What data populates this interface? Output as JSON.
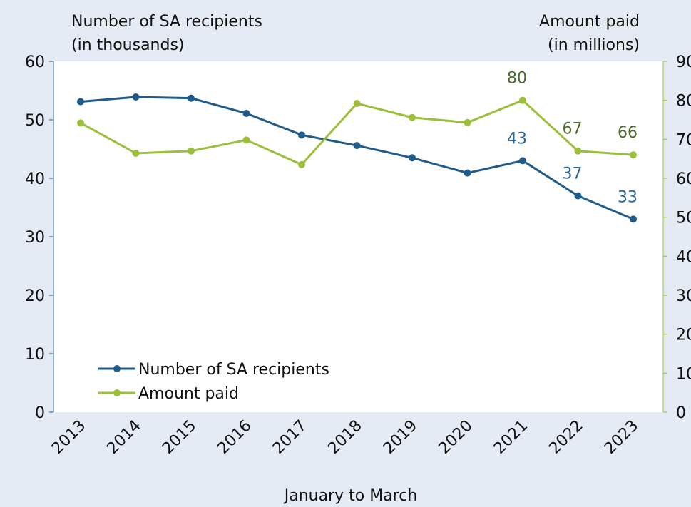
{
  "chart_data": {
    "type": "line",
    "ylabel": [
      "Number of SA recipients",
      "(in thousands)"
    ],
    "y2label": [
      "Amount paid",
      "(in millions)"
    ],
    "xlabel": "January to March",
    "categories": [
      "2013",
      "2014",
      "2015",
      "2016",
      "2017",
      "2018",
      "2019",
      "2020",
      "2021",
      "2022",
      "2023"
    ],
    "series": [
      {
        "name": "Number of SA recipients",
        "color": "#1f5c8b",
        "label_color": "#2a6496",
        "axis": "y",
        "values": [
          53.1,
          53.9,
          53.7,
          51.1,
          47.4,
          45.6,
          43.5,
          40.9,
          43,
          37,
          33
        ],
        "value_labels": [
          null,
          null,
          null,
          null,
          null,
          null,
          null,
          null,
          "43",
          "37",
          "33"
        ]
      },
      {
        "name": "Amount paid",
        "color": "#9bbf3b",
        "label_color": "#4a6b2a",
        "axis": "y2",
        "values": [
          74.2,
          66.4,
          67,
          69.8,
          63.5,
          79.2,
          75.6,
          74.3,
          80,
          67,
          66
        ],
        "value_labels": [
          null,
          null,
          null,
          null,
          null,
          null,
          null,
          null,
          "80",
          "67",
          "66"
        ]
      }
    ],
    "ylim": [
      0,
      60
    ],
    "yticks": [
      0,
      10,
      20,
      30,
      40,
      50,
      60
    ],
    "y2lim": [
      0,
      90
    ],
    "y2ticks": [
      0,
      10,
      20,
      30,
      40,
      50,
      60,
      70,
      80,
      90
    ],
    "legend": "lower left",
    "grid": false
  }
}
